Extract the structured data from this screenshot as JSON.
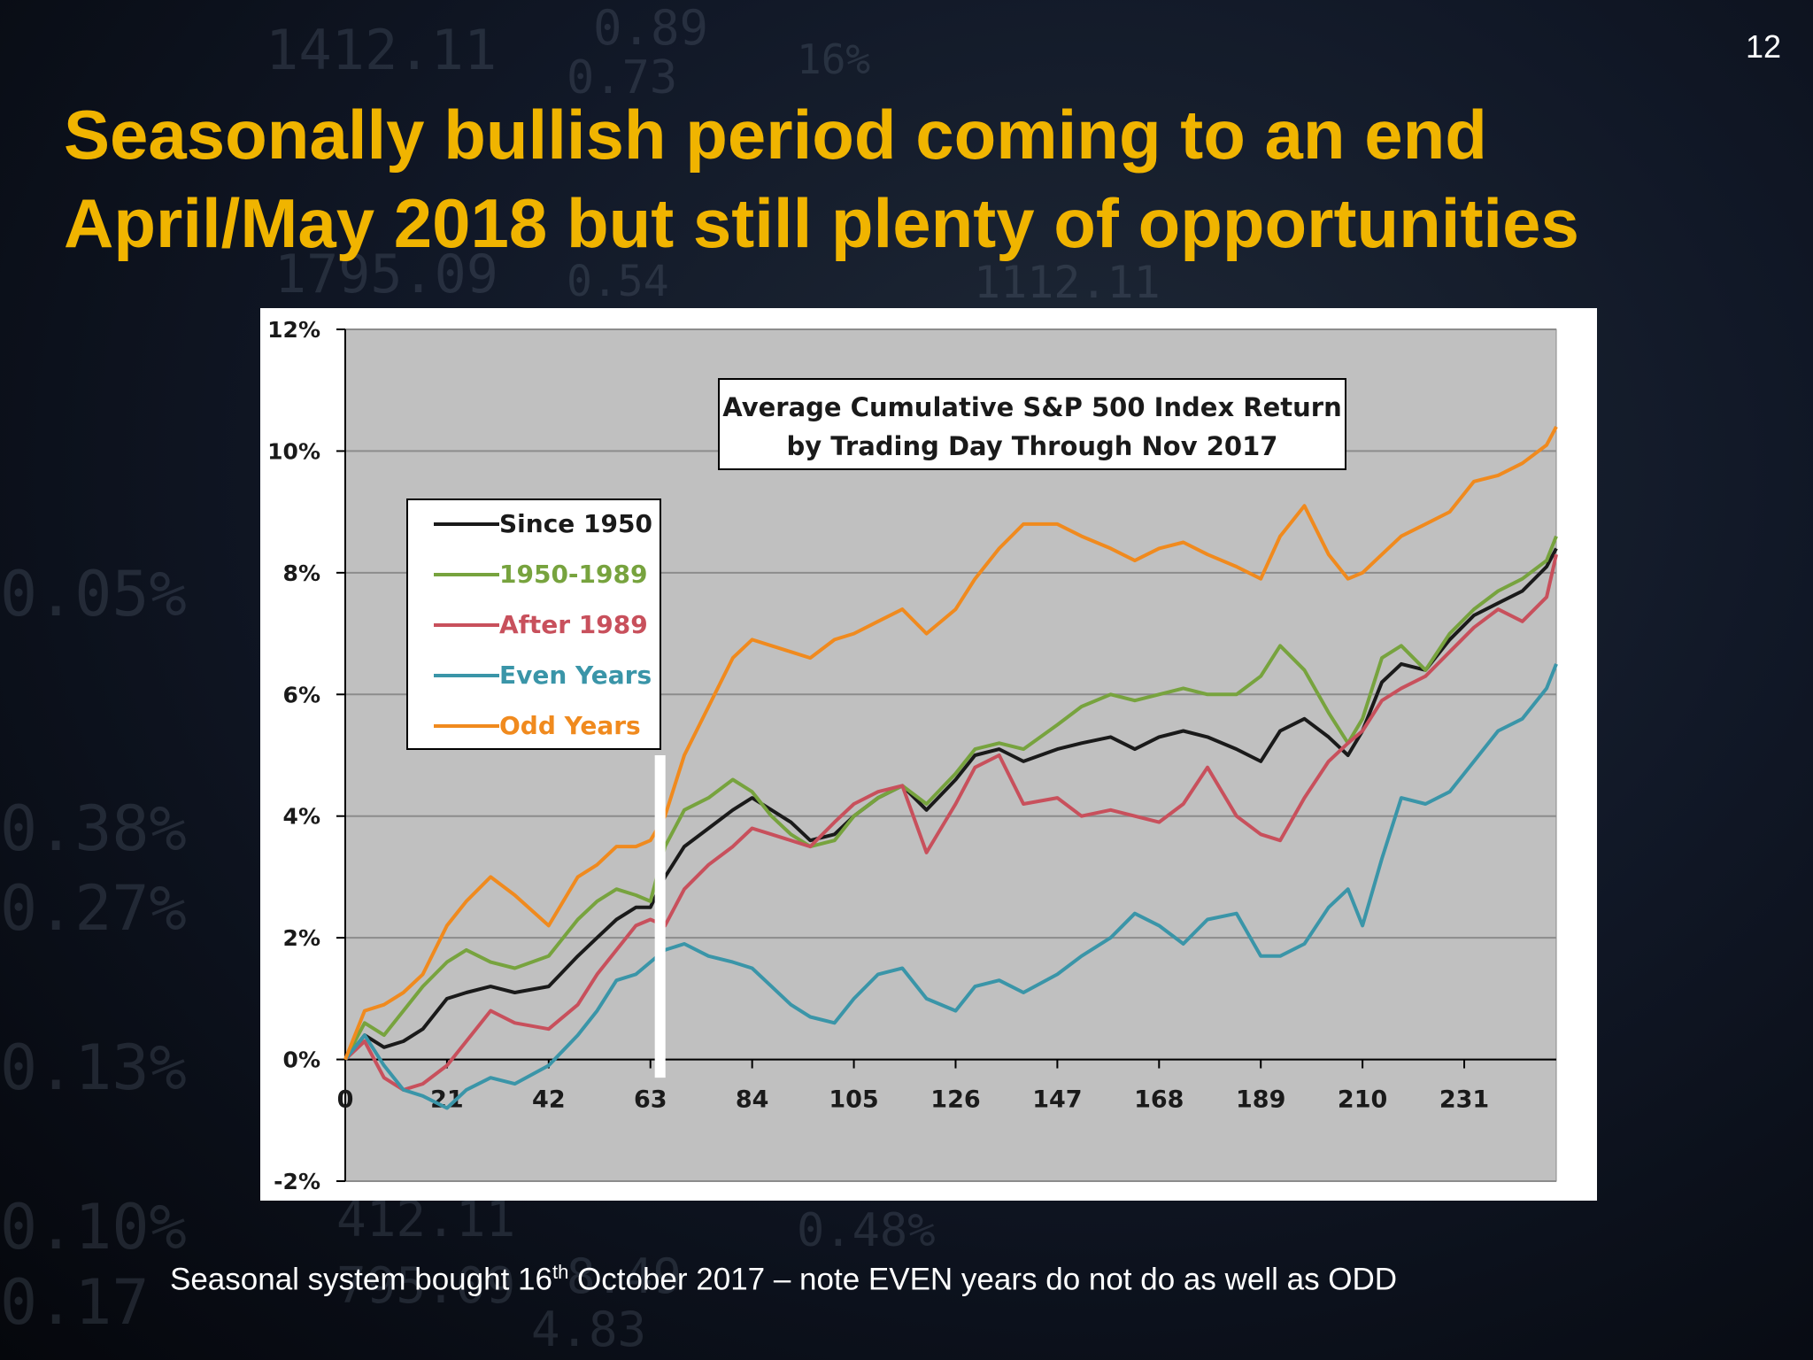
{
  "slide": {
    "number": "12",
    "title_line1": "Seasonally bullish period coming to an end",
    "title_line2": "April/May 2018 but still plenty of opportunities",
    "caption_before": "Seasonal system bought  16",
    "caption_sup": "th",
    "caption_after": " October 2017 – note EVEN years do not do as well as ODD",
    "background_digits": [
      "1412.11",
      "0.73",
      "1795.09",
      "0.54",
      "1112.11",
      "0.05%",
      "0.38%",
      "0.27%",
      "0.13%",
      "0.10%",
      "0.17",
      "412.11",
      "795.09",
      "8.49",
      "4.83",
      "0.48%",
      "0.89",
      "16%"
    ]
  },
  "colors": {
    "title": "#f0b400",
    "plot_background": "#c0c0c0",
    "since_1950": "#1a1a1a",
    "y1950_1989": "#77a33e",
    "after_1989": "#c8505c",
    "even_years": "#3a95a8",
    "odd_years": "#f08a1e",
    "marker": "#ffffff"
  },
  "chart_data": {
    "type": "line",
    "title_line1": "Average Cumulative S&P 500 Index Return",
    "title_line2": "by Trading Day Through Nov 2017",
    "xlabel": "",
    "ylabel": "",
    "xlim": [
      0,
      250
    ],
    "ylim": [
      -2,
      12
    ],
    "x_ticks": [
      0,
      21,
      42,
      63,
      84,
      105,
      126,
      147,
      168,
      189,
      210,
      231
    ],
    "y_ticks": [
      -2,
      0,
      2,
      4,
      6,
      8,
      10,
      12
    ],
    "y_tick_labels": [
      "-2%",
      "0%",
      "2%",
      "4%",
      "6%",
      "8%",
      "10%",
      "12%"
    ],
    "grid": "horizontal",
    "legend_position": "upper-left",
    "marker_line": {
      "x": 65,
      "y_from": -0.3,
      "y_to": 5.0
    },
    "x": [
      0,
      4,
      8,
      12,
      16,
      21,
      25,
      30,
      35,
      42,
      48,
      52,
      56,
      60,
      63,
      66,
      70,
      75,
      80,
      84,
      88,
      92,
      96,
      101,
      105,
      110,
      115,
      120,
      126,
      130,
      135,
      140,
      147,
      152,
      158,
      163,
      168,
      173,
      178,
      184,
      189,
      193,
      198,
      203,
      207,
      210,
      214,
      218,
      223,
      228,
      233,
      238,
      243,
      248,
      250
    ],
    "series": [
      {
        "name": "Since 1950",
        "color": "#1a1a1a",
        "values": [
          0,
          0.4,
          0.2,
          0.3,
          0.5,
          1.0,
          1.1,
          1.2,
          1.1,
          1.2,
          1.7,
          2.0,
          2.3,
          2.5,
          2.5,
          3.0,
          3.5,
          3.8,
          4.1,
          4.3,
          4.1,
          3.9,
          3.6,
          3.7,
          4.0,
          4.3,
          4.5,
          4.1,
          4.6,
          5.0,
          5.1,
          4.9,
          5.1,
          5.2,
          5.3,
          5.1,
          5.3,
          5.4,
          5.3,
          5.1,
          4.9,
          5.4,
          5.6,
          5.3,
          5.0,
          5.4,
          6.2,
          6.5,
          6.4,
          6.9,
          7.3,
          7.5,
          7.7,
          8.1,
          8.4
        ]
      },
      {
        "name": "1950-1989",
        "color": "#77a33e",
        "values": [
          0,
          0.6,
          0.4,
          0.8,
          1.2,
          1.6,
          1.8,
          1.6,
          1.5,
          1.7,
          2.3,
          2.6,
          2.8,
          2.7,
          2.6,
          3.5,
          4.1,
          4.3,
          4.6,
          4.4,
          4.0,
          3.7,
          3.5,
          3.6,
          4.0,
          4.3,
          4.5,
          4.2,
          4.7,
          5.1,
          5.2,
          5.1,
          5.5,
          5.8,
          6.0,
          5.9,
          6.0,
          6.1,
          6.0,
          6.0,
          6.3,
          6.8,
          6.4,
          5.7,
          5.2,
          5.6,
          6.6,
          6.8,
          6.4,
          7.0,
          7.4,
          7.7,
          7.9,
          8.2,
          8.6
        ]
      },
      {
        "name": "After 1989",
        "color": "#c8505c",
        "values": [
          0,
          0.3,
          -0.3,
          -0.5,
          -0.4,
          -0.1,
          0.3,
          0.8,
          0.6,
          0.5,
          0.9,
          1.4,
          1.8,
          2.2,
          2.3,
          2.2,
          2.8,
          3.2,
          3.5,
          3.8,
          3.7,
          3.6,
          3.5,
          3.9,
          4.2,
          4.4,
          4.5,
          3.4,
          4.2,
          4.8,
          5.0,
          4.2,
          4.3,
          4.0,
          4.1,
          4.0,
          3.9,
          4.2,
          4.8,
          4.0,
          3.7,
          3.6,
          4.3,
          4.9,
          5.2,
          5.4,
          5.9,
          6.1,
          6.3,
          6.7,
          7.1,
          7.4,
          7.2,
          7.6,
          8.3
        ]
      },
      {
        "name": "Even Years",
        "color": "#3a95a8",
        "values": [
          0,
          0.4,
          -0.1,
          -0.5,
          -0.6,
          -0.8,
          -0.5,
          -0.3,
          -0.4,
          -0.1,
          0.4,
          0.8,
          1.3,
          1.4,
          1.6,
          1.8,
          1.9,
          1.7,
          1.6,
          1.5,
          1.2,
          0.9,
          0.7,
          0.6,
          1.0,
          1.4,
          1.5,
          1.0,
          0.8,
          1.2,
          1.3,
          1.1,
          1.4,
          1.7,
          2.0,
          2.4,
          2.2,
          1.9,
          2.3,
          2.4,
          1.7,
          1.7,
          1.9,
          2.5,
          2.8,
          2.2,
          3.3,
          4.3,
          4.2,
          4.4,
          4.9,
          5.4,
          5.6,
          6.1,
          6.5
        ]
      },
      {
        "name": "Odd Years",
        "color": "#f08a1e",
        "values": [
          0,
          0.8,
          0.9,
          1.1,
          1.4,
          2.2,
          2.6,
          3.0,
          2.7,
          2.2,
          3.0,
          3.2,
          3.5,
          3.5,
          3.6,
          4.0,
          5.0,
          5.8,
          6.6,
          6.9,
          6.8,
          6.7,
          6.6,
          6.9,
          7.0,
          7.2,
          7.4,
          7.0,
          7.4,
          7.9,
          8.4,
          8.8,
          8.8,
          8.6,
          8.4,
          8.2,
          8.4,
          8.5,
          8.3,
          8.1,
          7.9,
          8.6,
          9.1,
          8.3,
          7.9,
          8.0,
          8.3,
          8.6,
          8.8,
          9.0,
          9.5,
          9.6,
          9.8,
          10.1,
          10.4
        ]
      }
    ]
  }
}
